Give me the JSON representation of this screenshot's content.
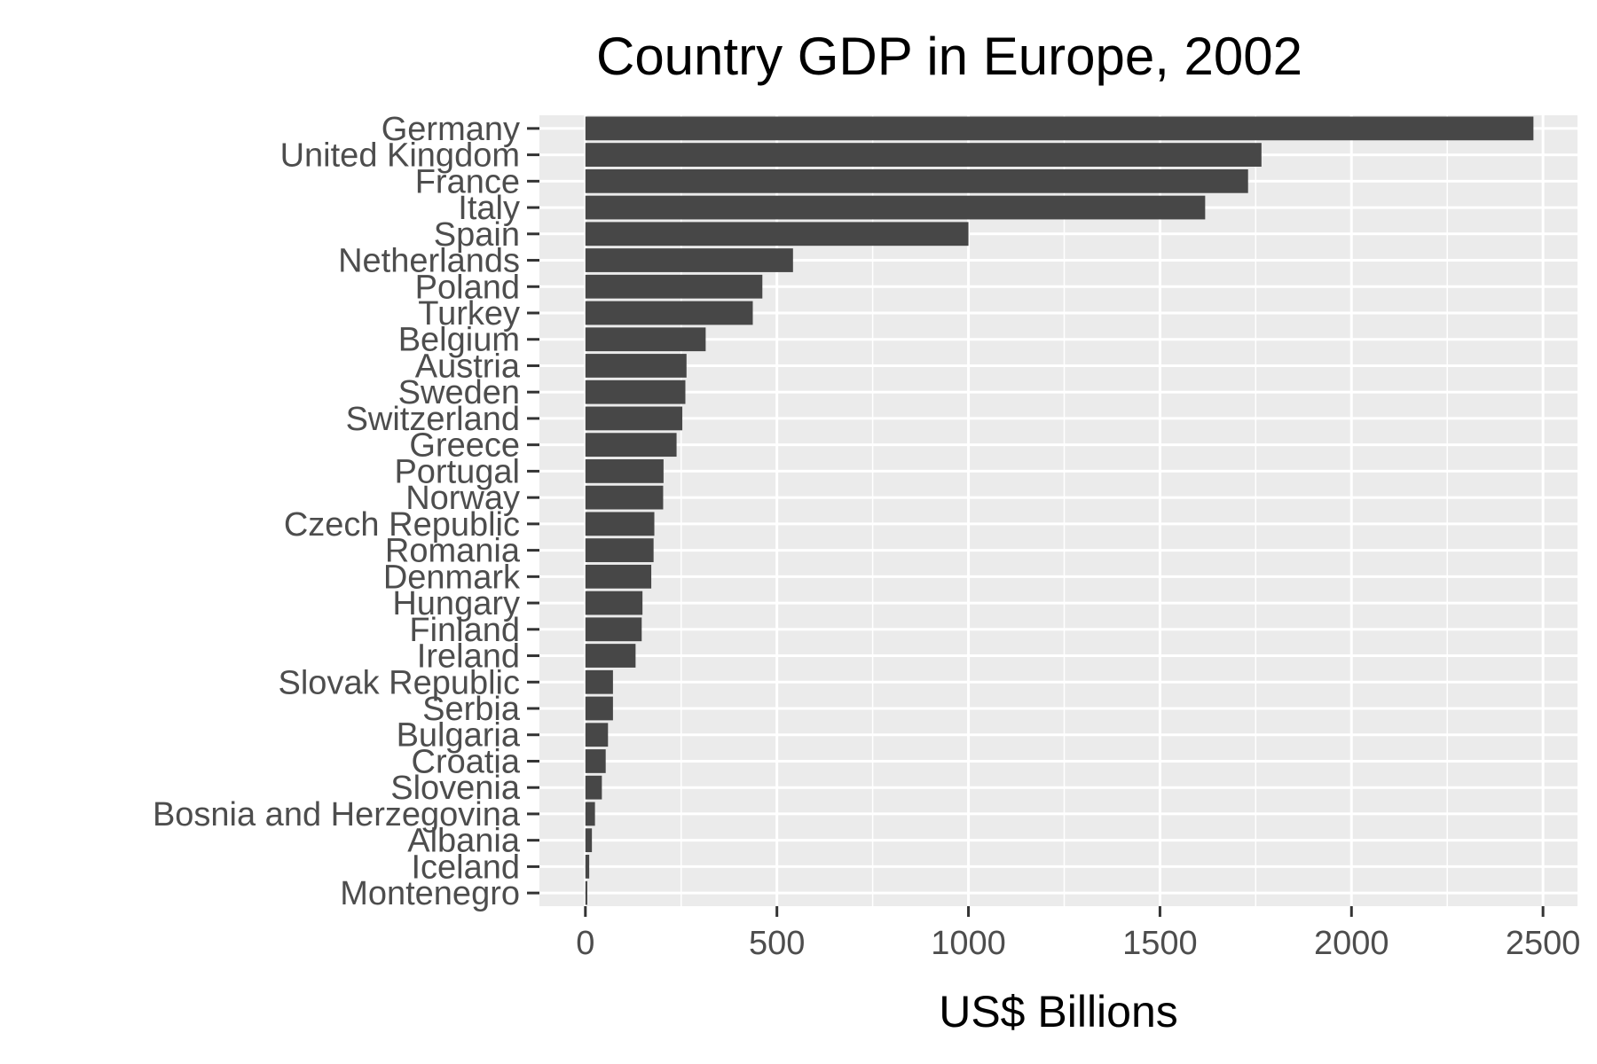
{
  "chart_data": {
    "type": "bar",
    "orientation": "horizontal",
    "title": "Country GDP in Europe, 2002",
    "xlabel": "US$ Billions",
    "ylabel": "",
    "xlim": [
      -120,
      2590
    ],
    "xticks": [
      0,
      500,
      1000,
      1500,
      2000,
      2500
    ],
    "grid": true,
    "colors": {
      "bar": "#474747",
      "panel": "#ebebeb",
      "grid": "#ffffff",
      "axis_text": "#4d4d4d",
      "tick": "#333333"
    },
    "categories": [
      "Germany",
      "United Kingdom",
      "France",
      "Italy",
      "Spain",
      "Netherlands",
      "Poland",
      "Turkey",
      "Belgium",
      "Austria",
      "Sweden",
      "Switzerland",
      "Greece",
      "Portugal",
      "Norway",
      "Czech Republic",
      "Romania",
      "Denmark",
      "Hungary",
      "Finland",
      "Ireland",
      "Slovak Republic",
      "Serbia",
      "Bulgaria",
      "Croatia",
      "Slovenia",
      "Bosnia and Herzegovina",
      "Albania",
      "Iceland",
      "Montenegro"
    ],
    "values": [
      2475,
      1765,
      1730,
      1618,
      1000,
      542,
      462,
      437,
      314,
      264,
      261,
      253,
      238,
      204,
      203,
      180,
      178,
      172,
      149,
      147,
      131,
      72,
      72,
      59,
      53,
      43,
      25,
      17,
      10,
      5
    ]
  }
}
